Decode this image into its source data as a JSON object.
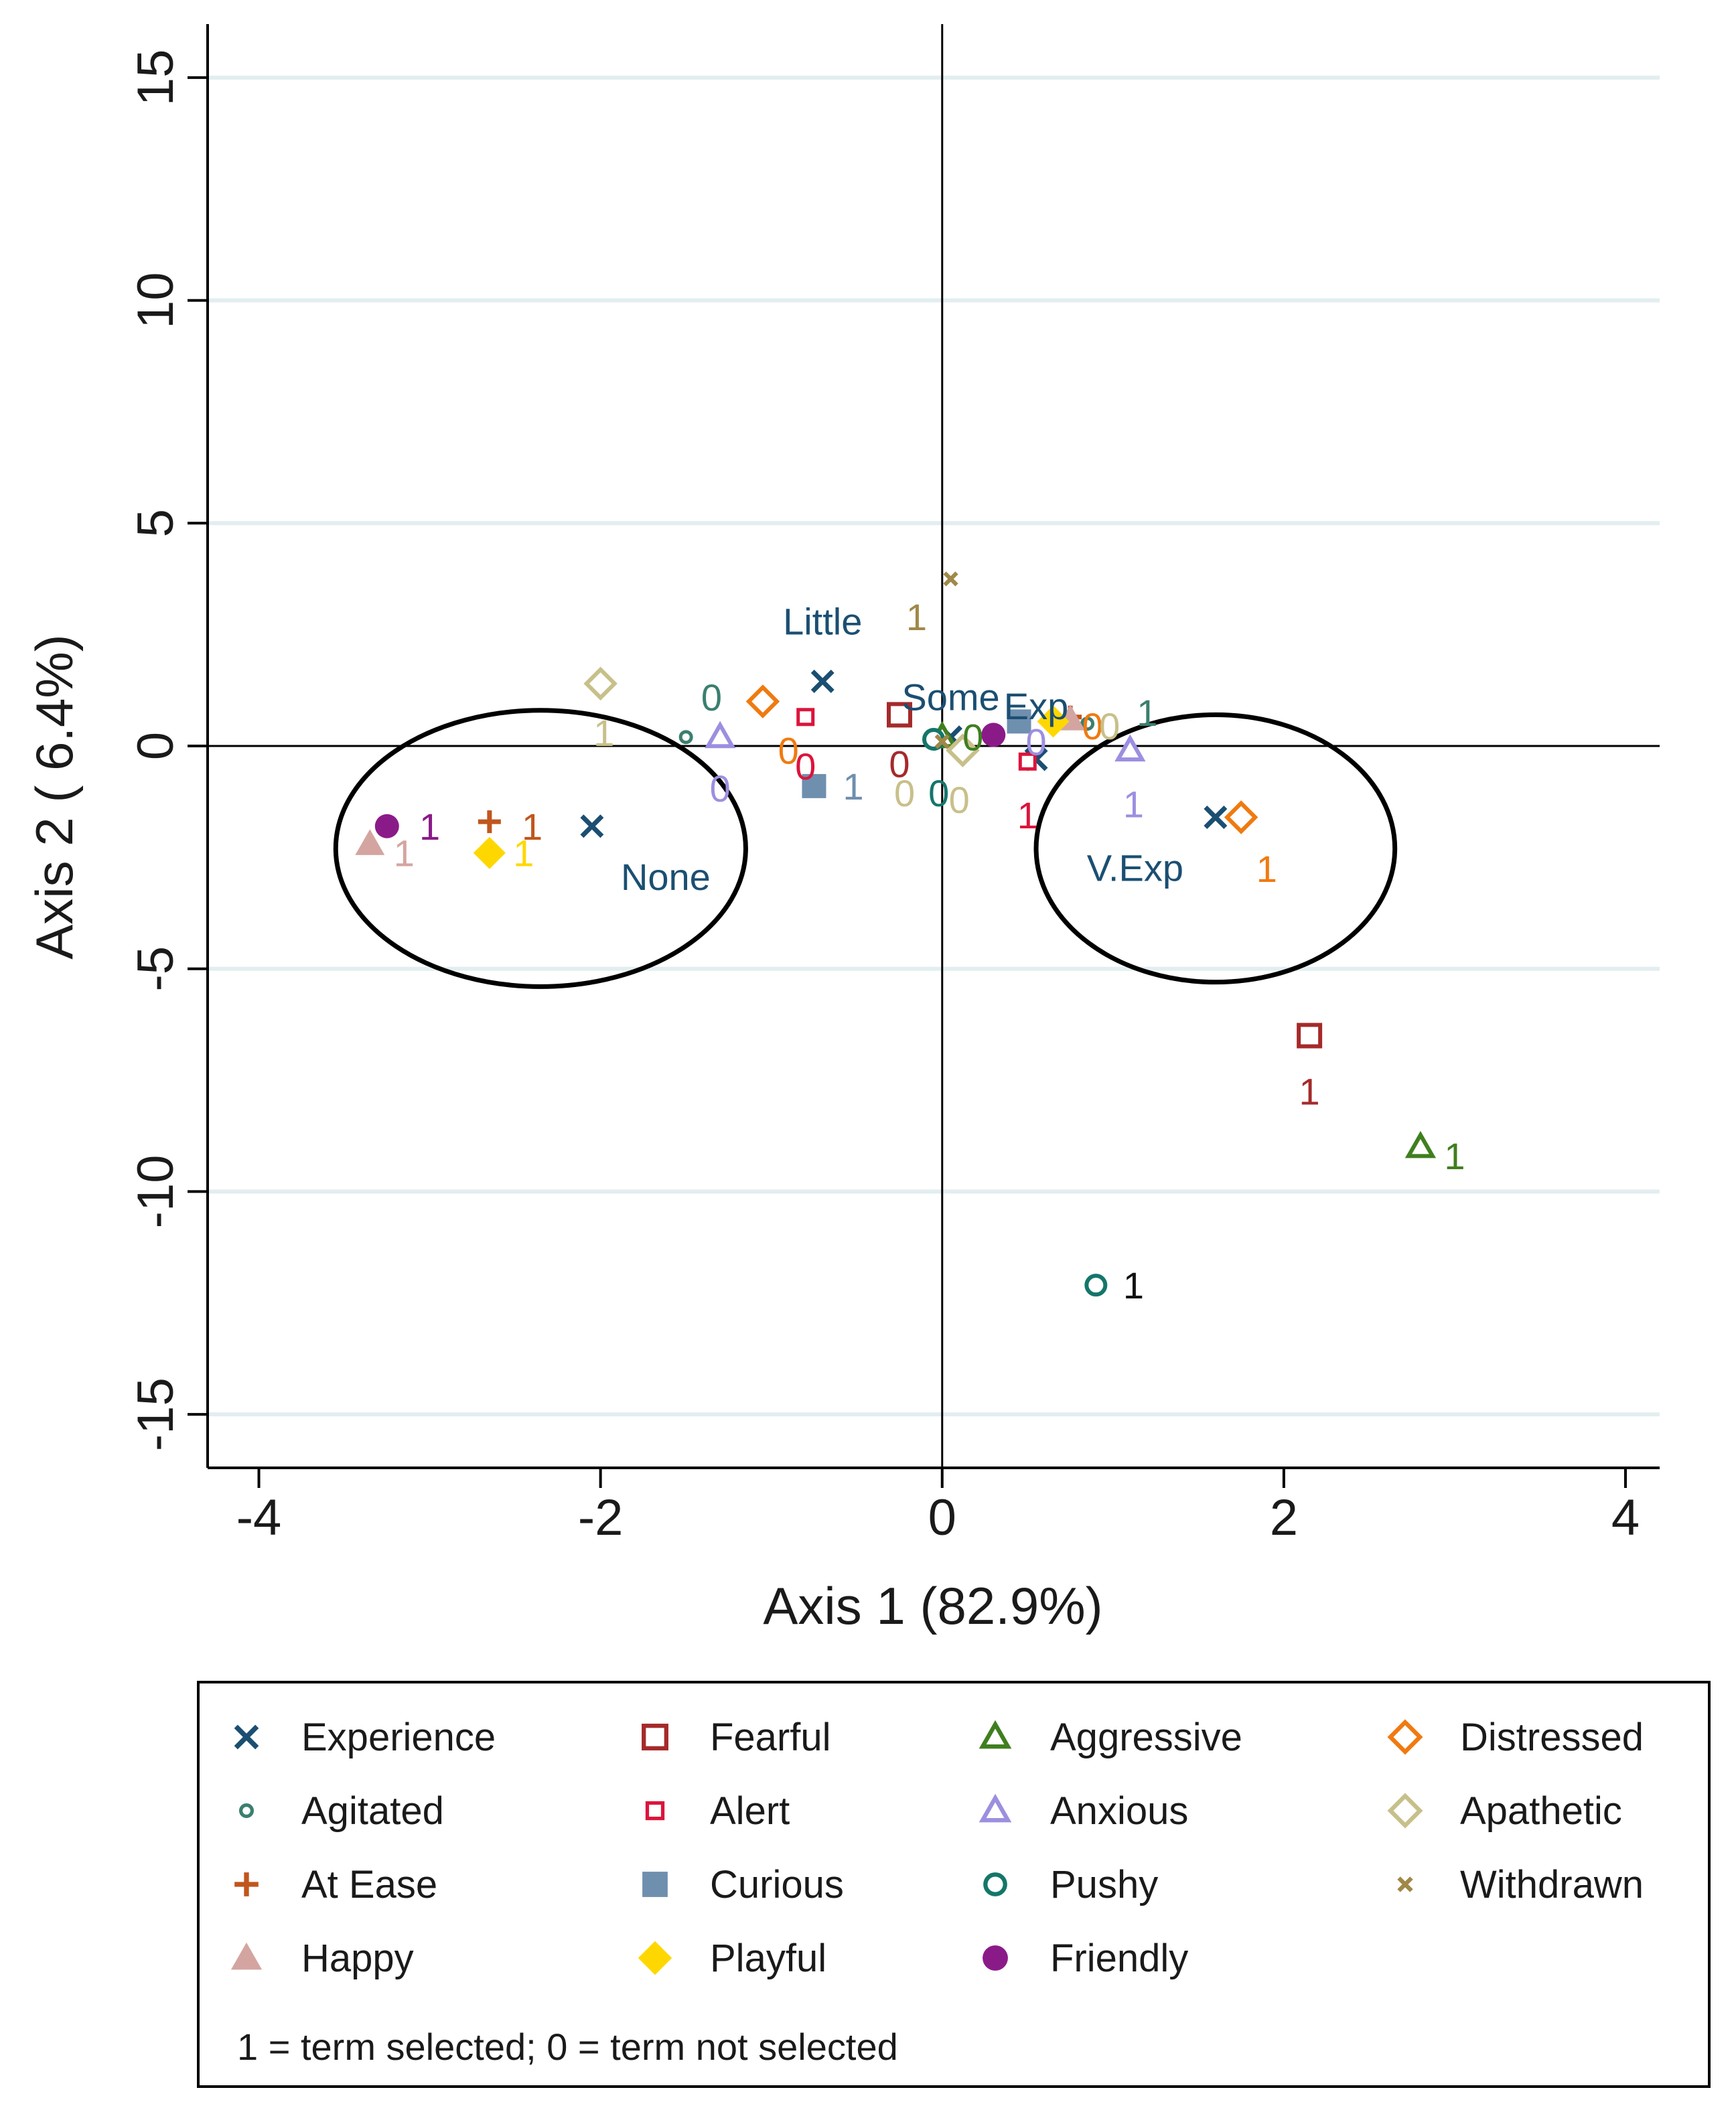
{
  "chart_data": {
    "type": "scatter",
    "title": "",
    "xlabel": "Axis 1 (82.9%)",
    "ylabel": "Axis 2 ( 6.4%)",
    "xlim": [
      -4.3,
      4.2
    ],
    "ylim": [
      -16.2,
      16.2
    ],
    "xticks": [
      -4,
      -2,
      0,
      2,
      4
    ],
    "yticks": [
      -15,
      -10,
      -5,
      0,
      5,
      10,
      15
    ],
    "x_tick_labels": [
      "-4",
      "-2",
      "0",
      "2",
      "4"
    ],
    "y_tick_labels": [
      "-15",
      "-10",
      "-5",
      "0",
      "5",
      "10",
      "15"
    ],
    "grid": "horizontal",
    "reference_lines": {
      "x": 0,
      "y": 0
    },
    "series": [
      {
        "name": "Experience",
        "color": "#1b4f72",
        "marker": "x",
        "points": [
          {
            "x": -2.05,
            "y": -1.8,
            "label": "None"
          },
          {
            "x": -0.7,
            "y": 1.45,
            "label": "Little"
          },
          {
            "x": 0.05,
            "y": 0.2,
            "label": "Some"
          },
          {
            "x": 0.55,
            "y": -0.3,
            "label": "Exp"
          },
          {
            "x": 1.6,
            "y": -1.6,
            "label": "V.Exp"
          }
        ]
      },
      {
        "name": "Fearful",
        "color": "#a52a2a",
        "marker": "square-open",
        "points": [
          {
            "x": -0.25,
            "y": 0.7,
            "label": "0"
          },
          {
            "x": 2.15,
            "y": -6.5,
            "label": "1"
          }
        ]
      },
      {
        "name": "Aggressive",
        "color": "#3f7f1f",
        "marker": "triangle-open",
        "points": [
          {
            "x": 0.0,
            "y": 0.2,
            "label": "0"
          },
          {
            "x": 2.8,
            "y": -9.0,
            "label": "1"
          }
        ]
      },
      {
        "name": "Distressed",
        "color": "#f07a10",
        "marker": "diamond-open",
        "points": [
          {
            "x": -1.05,
            "y": 1.0,
            "label": "0"
          },
          {
            "x": 1.75,
            "y": -1.6,
            "label": "1"
          }
        ]
      },
      {
        "name": "Agitated",
        "color": "#3b7f6f",
        "marker": "small-circle",
        "points": [
          {
            "x": -1.5,
            "y": 0.2,
            "label": "0"
          },
          {
            "x": 0.85,
            "y": 0.5,
            "label": "1"
          }
        ]
      },
      {
        "name": "Alert",
        "color": "#dc143c",
        "marker": "small-square-open",
        "points": [
          {
            "x": -0.8,
            "y": 0.65,
            "label": "0"
          },
          {
            "x": 0.5,
            "y": -0.35,
            "label": "1"
          }
        ]
      },
      {
        "name": "Anxious",
        "color": "#9c8fe0",
        "marker": "triangle-open",
        "points": [
          {
            "x": -1.3,
            "y": 0.2,
            "label": "0"
          },
          {
            "x": 1.1,
            "y": -0.1,
            "label": "1"
          }
        ]
      },
      {
        "name": "Apathetic",
        "color": "#c8c08a",
        "marker": "diamond-open",
        "points": [
          {
            "x": -2.0,
            "y": 1.4,
            "label": "1"
          },
          {
            "x": 0.12,
            "y": -0.1,
            "label": "0"
          }
        ]
      },
      {
        "name": "At Ease",
        "color": "#c0561e",
        "marker": "plus",
        "points": [
          {
            "x": -2.65,
            "y": -1.7,
            "label": "1"
          },
          {
            "x": 0.75,
            "y": 0.65,
            "label": "0"
          }
        ]
      },
      {
        "name": "Curious",
        "color": "#6f8faf",
        "marker": "square-filled",
        "points": [
          {
            "x": -0.75,
            "y": -0.9,
            "label": "1"
          },
          {
            "x": 0.45,
            "y": 0.55,
            "label": "0"
          }
        ]
      },
      {
        "name": "Pushy",
        "color": "#14766a",
        "marker": "circle-open",
        "points": [
          {
            "x": -0.05,
            "y": 0.15,
            "label": "0"
          },
          {
            "x": 0.9,
            "y": -12.1,
            "label": "1"
          }
        ]
      },
      {
        "name": "Withdrawn",
        "color": "#a08848",
        "marker": "small-x",
        "points": [
          {
            "x": 0.05,
            "y": 3.75,
            "label": "1"
          },
          {
            "x": 0.0,
            "y": 0.1,
            "label": "0"
          }
        ]
      },
      {
        "name": "Happy",
        "color": "#d4a5a0",
        "marker": "triangle-filled",
        "points": [
          {
            "x": -3.35,
            "y": -2.2,
            "label": "1"
          },
          {
            "x": 0.75,
            "y": 0.6,
            "label": "0"
          }
        ]
      },
      {
        "name": "Playful",
        "color": "#ffd700",
        "marker": "diamond-filled",
        "points": [
          {
            "x": -2.65,
            "y": -2.4,
            "label": "1"
          },
          {
            "x": 0.65,
            "y": 0.55,
            "label": "0"
          }
        ]
      },
      {
        "name": "Friendly",
        "color": "#8b1a89",
        "marker": "circle-filled",
        "points": [
          {
            "x": -3.25,
            "y": -1.8,
            "label": "1"
          },
          {
            "x": 0.3,
            "y": 0.25,
            "label": "0"
          }
        ]
      }
    ],
    "annotations": [
      {
        "text": "1",
        "x": -3.0,
        "y": -1.8,
        "color": "#8b1a89"
      },
      {
        "text": "1",
        "x": -3.15,
        "y": -2.4,
        "color": "#d4a5a0"
      },
      {
        "text": "1",
        "x": -2.4,
        "y": -1.8,
        "color": "#c0561e"
      },
      {
        "text": "1",
        "x": -2.45,
        "y": -2.4,
        "color": "#ffd700"
      },
      {
        "text": "1",
        "x": -1.98,
        "y": 0.3,
        "color": "#c8c08a"
      },
      {
        "text": "0",
        "x": -1.35,
        "y": 1.1,
        "color": "#3b7f6f"
      },
      {
        "text": "0",
        "x": -1.3,
        "y": -0.95,
        "color": "#9c8fe0"
      },
      {
        "text": "0",
        "x": -0.9,
        "y": -0.1,
        "color": "#f07a10"
      },
      {
        "text": "0",
        "x": -0.8,
        "y": -0.45,
        "color": "#dc143c"
      },
      {
        "text": "1",
        "x": -0.52,
        "y": -0.9,
        "color": "#6f8faf"
      },
      {
        "text": "1",
        "x": -0.15,
        "y": 2.9,
        "color": "#a08848"
      },
      {
        "text": "0",
        "x": -0.25,
        "y": -0.4,
        "color": "#a52a2a"
      },
      {
        "text": "0",
        "x": -0.22,
        "y": -1.05,
        "color": "#c8c08a"
      },
      {
        "text": "0",
        "x": -0.02,
        "y": -1.05,
        "color": "#14766a"
      },
      {
        "text": "0",
        "x": 0.1,
        "y": -1.2,
        "color": "#c8c08a"
      },
      {
        "text": "0",
        "x": 0.18,
        "y": 0.2,
        "color": "#3f7f1f"
      },
      {
        "text": "1",
        "x": 0.5,
        "y": -1.55,
        "color": "#dc143c"
      },
      {
        "text": "0",
        "x": 0.55,
        "y": 0.1,
        "color": "#9c8fe0"
      },
      {
        "text": "0",
        "x": 0.88,
        "y": 0.45,
        "color": "#f07a10"
      },
      {
        "text": "0",
        "x": 0.98,
        "y": 0.45,
        "color": "#c8c08a"
      },
      {
        "text": "1",
        "x": 1.2,
        "y": 0.75,
        "color": "#3b7f6f"
      },
      {
        "text": "1",
        "x": 1.12,
        "y": -1.3,
        "color": "#9c8fe0"
      },
      {
        "text": "1",
        "x": 1.9,
        "y": -2.75,
        "color": "#f07a10"
      },
      {
        "text": "1",
        "x": 2.15,
        "y": -7.75,
        "color": "#a52a2a"
      },
      {
        "text": "1",
        "x": 3.0,
        "y": -9.2,
        "color": "#3f7f1f"
      },
      {
        "text": "1",
        "x": 1.12,
        "y": -12.1,
        "color": "#111111"
      }
    ],
    "ellipses": [
      {
        "cx": -2.35,
        "cy": -2.3,
        "rx": 1.2,
        "ry": 3.1
      },
      {
        "cx": 1.6,
        "cy": -2.3,
        "rx": 1.05,
        "ry": 3.0
      }
    ]
  },
  "legend": {
    "items": [
      {
        "label": "Experience",
        "marker": "x",
        "color": "#1b4f72"
      },
      {
        "label": "Fearful",
        "marker": "square-open",
        "color": "#a52a2a"
      },
      {
        "label": "Aggressive",
        "marker": "triangle-open",
        "color": "#3f7f1f"
      },
      {
        "label": "Distressed",
        "marker": "diamond-open",
        "color": "#f07a10"
      },
      {
        "label": "Agitated",
        "marker": "small-circle",
        "color": "#3b7f6f"
      },
      {
        "label": "Alert",
        "marker": "small-square-open",
        "color": "#dc143c"
      },
      {
        "label": "Anxious",
        "marker": "triangle-open",
        "color": "#9c8fe0"
      },
      {
        "label": "Apathetic",
        "marker": "diamond-open",
        "color": "#c8c08a"
      },
      {
        "label": "At Ease",
        "marker": "plus",
        "color": "#c0561e"
      },
      {
        "label": "Curious",
        "marker": "square-filled",
        "color": "#6f8faf"
      },
      {
        "label": "Pushy",
        "marker": "circle-open",
        "color": "#14766a"
      },
      {
        "label": "Withdrawn",
        "marker": "small-x",
        "color": "#a08848"
      },
      {
        "label": "Happy",
        "marker": "triangle-filled",
        "color": "#d4a5a0"
      },
      {
        "label": "Playful",
        "marker": "diamond-filled",
        "color": "#ffd700"
      },
      {
        "label": "Friendly",
        "marker": "circle-filled",
        "color": "#8b1a89"
      }
    ],
    "note": "1 = term selected; 0 = term not selected"
  }
}
